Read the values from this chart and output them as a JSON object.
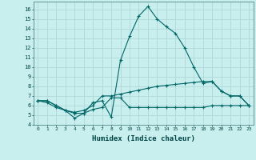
{
  "xlabel": "Humidex (Indice chaleur)",
  "bg_color": "#c8eeee",
  "grid_color": "#b0d8d8",
  "line_color": "#006666",
  "xlim": [
    -0.5,
    23.5
  ],
  "ylim": [
    4,
    16.8
  ],
  "xticks": [
    0,
    1,
    2,
    3,
    4,
    5,
    6,
    7,
    8,
    9,
    10,
    11,
    12,
    13,
    14,
    15,
    16,
    17,
    18,
    19,
    20,
    21,
    22,
    23
  ],
  "yticks": [
    4,
    5,
    6,
    7,
    8,
    9,
    10,
    11,
    12,
    13,
    14,
    15,
    16
  ],
  "series": [
    {
      "x": [
        0,
        1,
        2,
        3,
        4,
        5,
        6,
        7,
        8,
        9,
        10,
        11,
        12,
        13,
        14,
        15,
        16,
        17,
        18,
        19,
        20,
        21,
        22,
        23
      ],
      "y": [
        6.5,
        6.5,
        6.0,
        5.5,
        4.7,
        5.2,
        6.3,
        6.5,
        4.8,
        10.7,
        13.2,
        15.3,
        16.3,
        15.0,
        14.2,
        13.5,
        12.0,
        10.0,
        8.3,
        8.5,
        7.5,
        7.0,
        7.0,
        6.0
      ]
    },
    {
      "x": [
        0,
        1,
        2,
        3,
        4,
        5,
        6,
        7,
        8,
        9,
        10,
        11,
        12,
        13,
        14,
        15,
        16,
        17,
        18,
        19,
        20,
        21,
        22,
        23
      ],
      "y": [
        6.5,
        6.5,
        6.0,
        5.5,
        5.3,
        5.5,
        6.0,
        7.0,
        7.0,
        7.2,
        7.4,
        7.6,
        7.8,
        8.0,
        8.1,
        8.2,
        8.3,
        8.4,
        8.5,
        8.5,
        7.5,
        7.0,
        7.0,
        6.0
      ]
    },
    {
      "x": [
        0,
        1,
        2,
        3,
        4,
        5,
        6,
        7,
        8,
        9,
        10,
        11,
        12,
        13,
        14,
        15,
        16,
        17,
        18,
        19,
        20,
        21,
        22,
        23
      ],
      "y": [
        6.5,
        6.3,
        5.8,
        5.5,
        5.2,
        5.2,
        5.6,
        5.8,
        6.8,
        6.8,
        5.8,
        5.8,
        5.8,
        5.8,
        5.8,
        5.8,
        5.8,
        5.8,
        5.8,
        6.0,
        6.0,
        6.0,
        6.0,
        6.0
      ]
    }
  ]
}
